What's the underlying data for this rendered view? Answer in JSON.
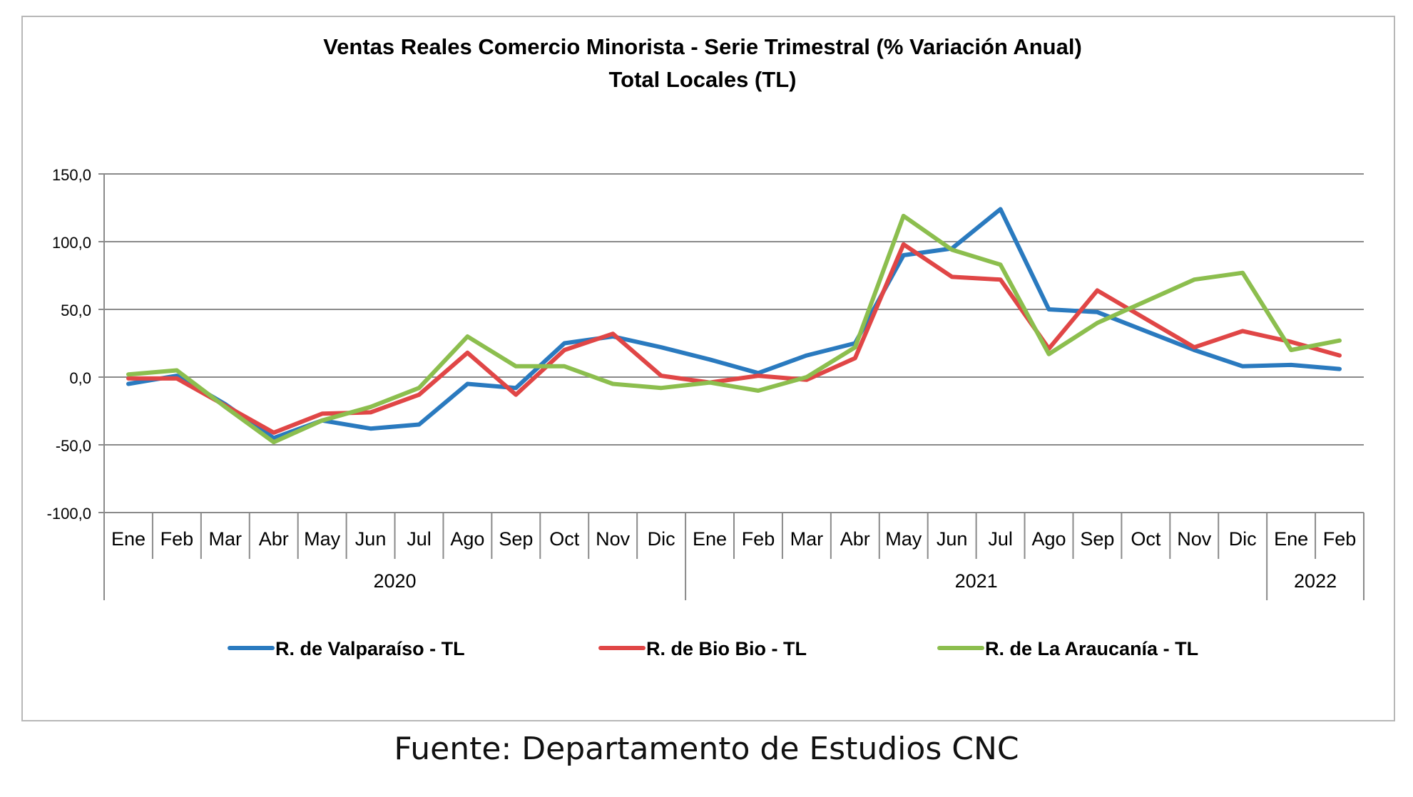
{
  "source_note": "Fuente: Departamento de Estudios CNC",
  "chart_data": {
    "type": "line",
    "title": "Ventas Reales Comercio Minorista - Serie Trimestral (% Variación Anual)",
    "subtitle": "Total Locales (TL)",
    "xlabel": "",
    "ylabel": "",
    "ylim": [
      -100,
      150
    ],
    "yticks": [
      -100,
      -50,
      0,
      50,
      100,
      150
    ],
    "ytick_labels": [
      "-100,0",
      "-50,0",
      "0,0",
      "50,0",
      "100,0",
      "150,0"
    ],
    "grid": true,
    "legend_position": "bottom",
    "categories": [
      "Ene",
      "Feb",
      "Mar",
      "Abr",
      "May",
      "Jun",
      "Jul",
      "Ago",
      "Sep",
      "Oct",
      "Nov",
      "Dic",
      "Ene",
      "Feb",
      "Mar",
      "Abr",
      "May",
      "Jun",
      "Jul",
      "Ago",
      "Sep",
      "Oct",
      "Nov",
      "Dic",
      "Ene",
      "Feb"
    ],
    "year_groups": [
      {
        "label": "2020",
        "start": 0,
        "end": 11
      },
      {
        "label": "2021",
        "start": 12,
        "end": 23
      },
      {
        "label": "2022",
        "start": 24,
        "end": 25
      }
    ],
    "series": [
      {
        "name": "R. de Valparaíso - TL",
        "color": "#2a7abf",
        "values": [
          -5,
          1,
          -20,
          -45,
          -32,
          -38,
          -35,
          -5,
          -8,
          25,
          30,
          22,
          13,
          3,
          16,
          25,
          90,
          95,
          124,
          50,
          48,
          34,
          20,
          8,
          9,
          6
        ]
      },
      {
        "name": "R. de Bio Bio - TL",
        "color": "#e04646",
        "values": [
          -1,
          -1,
          -21,
          -41,
          -27,
          -26,
          -13,
          18,
          -13,
          20,
          32,
          1,
          -4,
          1,
          -2,
          14,
          98,
          74,
          72,
          21,
          64,
          43,
          22,
          34,
          26,
          16
        ]
      },
      {
        "name": "R. de La Araucanía - TL",
        "color": "#8cbe4e",
        "values": [
          2,
          5,
          -22,
          -48,
          -32,
          -22,
          -8,
          30,
          8,
          8,
          -5,
          -8,
          -4,
          -10,
          0,
          22,
          119,
          94,
          83,
          17,
          40,
          56,
          72,
          77,
          20,
          27
        ]
      }
    ]
  }
}
